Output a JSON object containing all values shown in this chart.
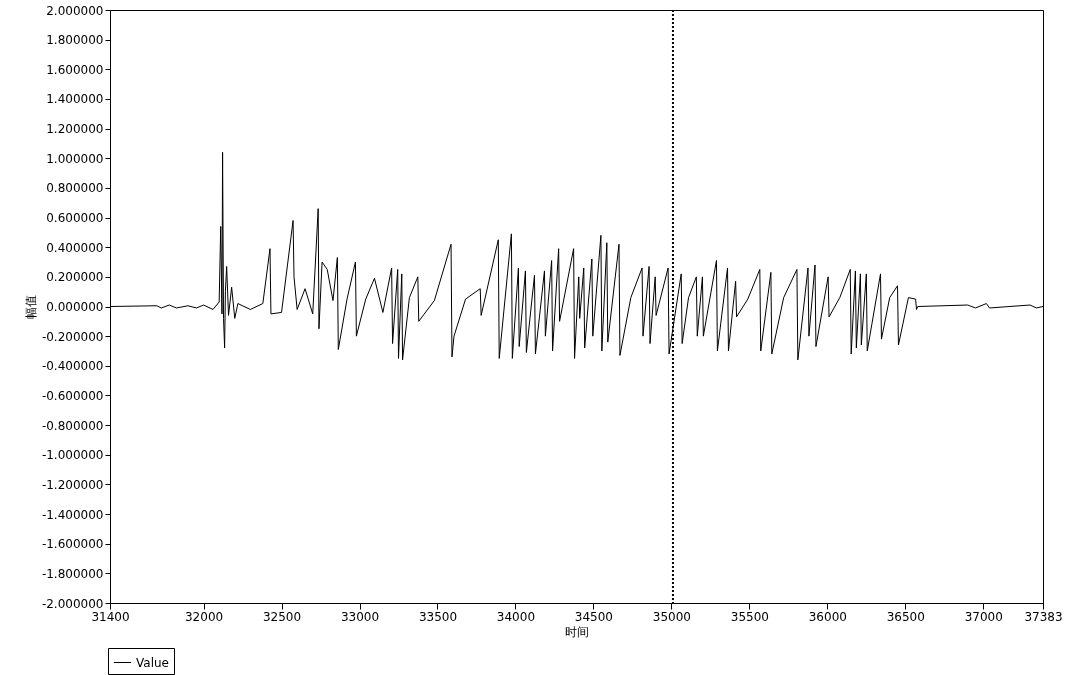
{
  "chart_data": {
    "type": "line",
    "xlabel": "时间",
    "ylabel": "幅值",
    "legend": "bottom left",
    "grid": false,
    "marker": "none",
    "line_style": "solid",
    "xlim": [
      31400,
      37383
    ],
    "xticks": [
      31400,
      32000,
      32500,
      33000,
      33500,
      34000,
      34500,
      35000,
      35500,
      36000,
      36500,
      37000,
      37383
    ],
    "ylim": [
      -2,
      2
    ],
    "yticks": [
      {
        "value": 2,
        "label": "2.000000"
      },
      {
        "value": 1.8,
        "label": "1.800000"
      },
      {
        "value": 1.6,
        "label": "1.600000"
      },
      {
        "value": 1.4,
        "label": "1.400000"
      },
      {
        "value": 1.2,
        "label": "1.200000"
      },
      {
        "value": 1,
        "label": "1.000000"
      },
      {
        "value": 0.8,
        "label": "0.800000"
      },
      {
        "value": 0.6,
        "label": "0.600000"
      },
      {
        "value": 0.4,
        "label": "0.400000"
      },
      {
        "value": 0.2,
        "label": "0.200000"
      },
      {
        "value": 0,
        "label": "0.000000"
      },
      {
        "value": -0.2,
        "label": "-0.200000"
      },
      {
        "value": -0.4,
        "label": "-0.400000"
      },
      {
        "value": -0.6,
        "label": "-0.600000"
      },
      {
        "value": -0.8,
        "label": "-0.800000"
      },
      {
        "value": -1,
        "label": "-1.000000"
      },
      {
        "value": -1.2,
        "label": "-1.200000"
      },
      {
        "value": -1.4,
        "label": "-1.400000"
      },
      {
        "value": -1.6,
        "label": "-1.600000"
      },
      {
        "value": -1.8,
        "label": "-1.800000"
      },
      {
        "value": -2,
        "label": "-2.000000"
      }
    ],
    "ref_lines": [
      {
        "axis": "x",
        "value": 35010,
        "color": "#000000",
        "line_style": "dotted"
      }
    ],
    "series": [
      {
        "name": "Value",
        "color": "#000000",
        "x": [
          31400,
          31700,
          31729,
          31780,
          31826,
          31900,
          31955,
          32000,
          32060,
          32100,
          32110,
          32118,
          32122,
          32128,
          32135,
          32140,
          32148,
          32160,
          32180,
          32200,
          32220,
          32300,
          32380,
          32426,
          32432,
          32500,
          32574,
          32580,
          32600,
          32651,
          32700,
          32735,
          32740,
          32760,
          32793,
          32830,
          32858,
          32864,
          32920,
          32974,
          32980,
          33040,
          33096,
          33150,
          33206,
          33212,
          33245,
          33250,
          33271,
          33276,
          33320,
          33374,
          33380,
          33480,
          33587,
          33593,
          33606,
          33680,
          33774,
          33780,
          33890,
          33896,
          33974,
          33980,
          34019,
          34024,
          34064,
          34070,
          34122,
          34128,
          34186,
          34192,
          34232,
          34238,
          34277,
          34283,
          34373,
          34379,
          34406,
          34412,
          34438,
          34444,
          34490,
          34496,
          34548,
          34554,
          34586,
          34592,
          34664,
          34670,
          34740,
          34812,
          34818,
          34857,
          34863,
          34896,
          34902,
          34979,
          34985,
          35063,
          35069,
          35110,
          35160,
          35166,
          35199,
          35205,
          35289,
          35295,
          35360,
          35366,
          35412,
          35418,
          35490,
          35567,
          35573,
          35638,
          35644,
          35720,
          35805,
          35811,
          35876,
          35882,
          35921,
          35927,
          36005,
          36011,
          36080,
          36147,
          36153,
          36180,
          36186,
          36212,
          36218,
          36250,
          36256,
          36341,
          36347,
          36400,
          36450,
          36456,
          36520,
          36566,
          36572,
          36580,
          36900,
          36950,
          37020,
          37040,
          37300,
          37340,
          37383
        ],
        "values": [
          0,
          0.005,
          -0.01,
          0.01,
          -0.01,
          0.005,
          -0.01,
          0.01,
          -0.02,
          0.03,
          0.54,
          -0.05,
          1.04,
          -0.08,
          -0.28,
          0.1,
          0.27,
          -0.06,
          0.13,
          -0.08,
          0.02,
          -0.02,
          0.02,
          0.39,
          -0.05,
          -0.04,
          0.58,
          0.2,
          -0.02,
          0.12,
          -0.05,
          0.66,
          -0.15,
          0.3,
          0.25,
          0.04,
          0.33,
          -0.29,
          0.05,
          0.3,
          -0.2,
          0.05,
          0.19,
          -0.04,
          0.26,
          -0.25,
          0.25,
          -0.35,
          0.22,
          -0.36,
          0.06,
          0.2,
          -0.1,
          0.04,
          0.42,
          -0.34,
          -0.2,
          0.05,
          0.12,
          -0.06,
          0.45,
          -0.35,
          0.49,
          -0.35,
          0.26,
          -0.27,
          0.24,
          -0.31,
          0.21,
          -0.32,
          0.24,
          -0.2,
          0.31,
          -0.3,
          0.39,
          -0.1,
          0.39,
          -0.35,
          0.2,
          -0.08,
          0.26,
          -0.28,
          0.32,
          -0.2,
          0.48,
          -0.3,
          0.43,
          -0.24,
          0.42,
          -0.33,
          0.06,
          0.26,
          -0.2,
          0.27,
          -0.25,
          0.2,
          -0.06,
          0.26,
          -0.32,
          0.22,
          -0.25,
          0.06,
          0.2,
          -0.2,
          0.2,
          -0.2,
          0.31,
          -0.3,
          0.26,
          -0.3,
          0.17,
          -0.07,
          0.05,
          0.25,
          -0.3,
          0.23,
          -0.32,
          0.06,
          0.25,
          -0.36,
          0.26,
          -0.2,
          0.28,
          -0.27,
          0.2,
          -0.07,
          0.06,
          0.25,
          -0.32,
          0.24,
          -0.28,
          0.22,
          -0.26,
          0.22,
          -0.3,
          0.22,
          -0.22,
          0.06,
          0.14,
          -0.26,
          0.06,
          0.05,
          -0.02,
          0,
          0.01,
          -0.01,
          0.02,
          -0.01,
          0.01,
          -0.01,
          0
        ]
      }
    ]
  }
}
